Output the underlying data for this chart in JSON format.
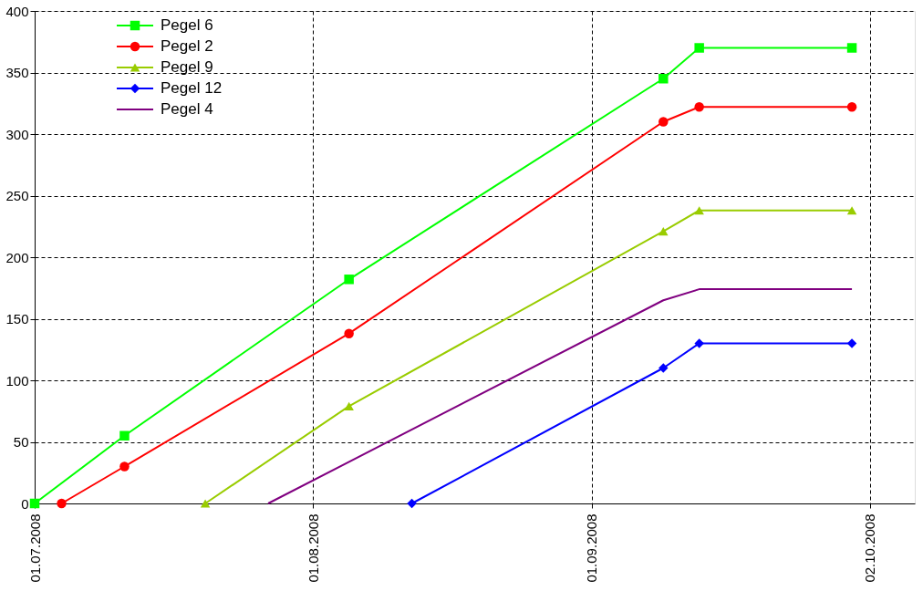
{
  "chart_data": {
    "type": "line",
    "legend": "top left",
    "grid": true,
    "xlim": [
      "2008-07-01",
      "2008-10-07"
    ],
    "xticks": [
      {
        "value": "2008-07-01",
        "label": "01.07.2008"
      },
      {
        "value": "2008-08-01",
        "label": "01.08.2008"
      },
      {
        "value": "2008-09-01",
        "label": "01.09.2008"
      },
      {
        "value": "2008-10-02",
        "label": "02.10.2008"
      }
    ],
    "ylim": [
      0,
      400
    ],
    "yticks": [
      0,
      50,
      100,
      150,
      200,
      250,
      300,
      350,
      400
    ],
    "series": [
      {
        "name": "Pegel 6",
        "color": "#00ff00",
        "marker": "square",
        "x": [
          "2008-07-01",
          "2008-07-11",
          "2008-08-05",
          "2008-09-09",
          "2008-09-13",
          "2008-09-30"
        ],
        "values": [
          0,
          55,
          182,
          345,
          370,
          370
        ]
      },
      {
        "name": "Pegel 2",
        "color": "#ff0000",
        "marker": "circle",
        "x": [
          "2008-07-04",
          "2008-07-11",
          "2008-08-05",
          "2008-09-09",
          "2008-09-13",
          "2008-09-30"
        ],
        "values": [
          0,
          30,
          138,
          310,
          322,
          322
        ]
      },
      {
        "name": "Pegel 9",
        "color": "#99cc00",
        "marker": "triangle",
        "x": [
          "2008-07-20",
          "2008-08-05",
          "2008-09-09",
          "2008-09-13",
          "2008-09-30"
        ],
        "values": [
          0,
          79,
          221,
          238,
          238
        ]
      },
      {
        "name": "Pegel 12",
        "color": "#0000ff",
        "marker": "diamond",
        "x": [
          "2008-08-12",
          "2008-09-09",
          "2008-09-13",
          "2008-09-30"
        ],
        "values": [
          0,
          110,
          130,
          130
        ]
      },
      {
        "name": "Pegel 4",
        "color": "#800080",
        "marker": "none",
        "x": [
          "2008-07-27",
          "2008-09-09",
          "2008-09-13",
          "2008-09-30"
        ],
        "values": [
          0,
          165,
          174,
          174
        ]
      }
    ]
  }
}
